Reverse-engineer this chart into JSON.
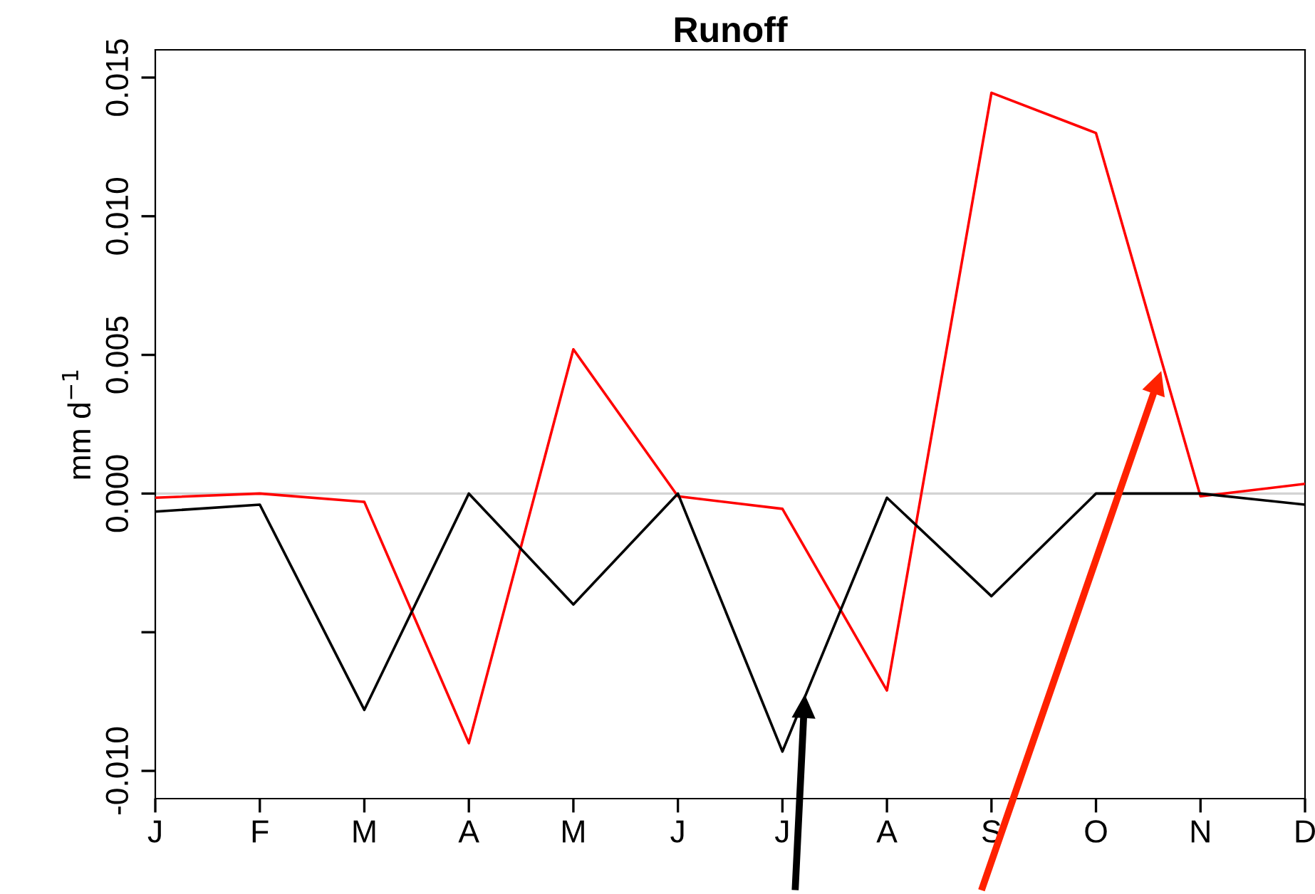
{
  "chart_data": {
    "type": "line",
    "title": "Runoff",
    "ylabel": "mm d$^{−1}$",
    "categories": [
      "J",
      "F",
      "M",
      "A",
      "M",
      "J",
      "J",
      "A",
      "S",
      "O",
      "N",
      "D"
    ],
    "series": [
      {
        "color": "#ff0000",
        "values": [
          -0.00015,
          0,
          -0.0003,
          -0.009,
          0.0052,
          -0.0001,
          -0.00055,
          -0.0071,
          0.01445,
          0.013,
          -0.0001,
          0.00035
        ]
      },
      {
        "color": "#000000",
        "values": [
          -0.00065,
          -0.0004,
          -0.0078,
          0,
          -0.004,
          0,
          -0.0093,
          -0.00015,
          -0.0037,
          0,
          0,
          -0.0004
        ]
      }
    ],
    "ylim": [
      -0.011,
      0.016
    ],
    "yticks": [
      {
        "value": -0.01,
        "label": "-0.010"
      },
      {
        "value": -0.005,
        "label": null
      },
      {
        "value": 0,
        "label": "0.000"
      },
      {
        "value": 0.005,
        "label": "0.005"
      },
      {
        "value": 0.01,
        "label": "0.010"
      },
      {
        "value": 0.015,
        "label": "0.015"
      }
    ],
    "ref_lines": [
      {
        "axis": "y",
        "value": 0,
        "color": "#d3d3d3"
      }
    ],
    "grid": false,
    "legend": false,
    "marker": "none",
    "line_style": "solid"
  }
}
